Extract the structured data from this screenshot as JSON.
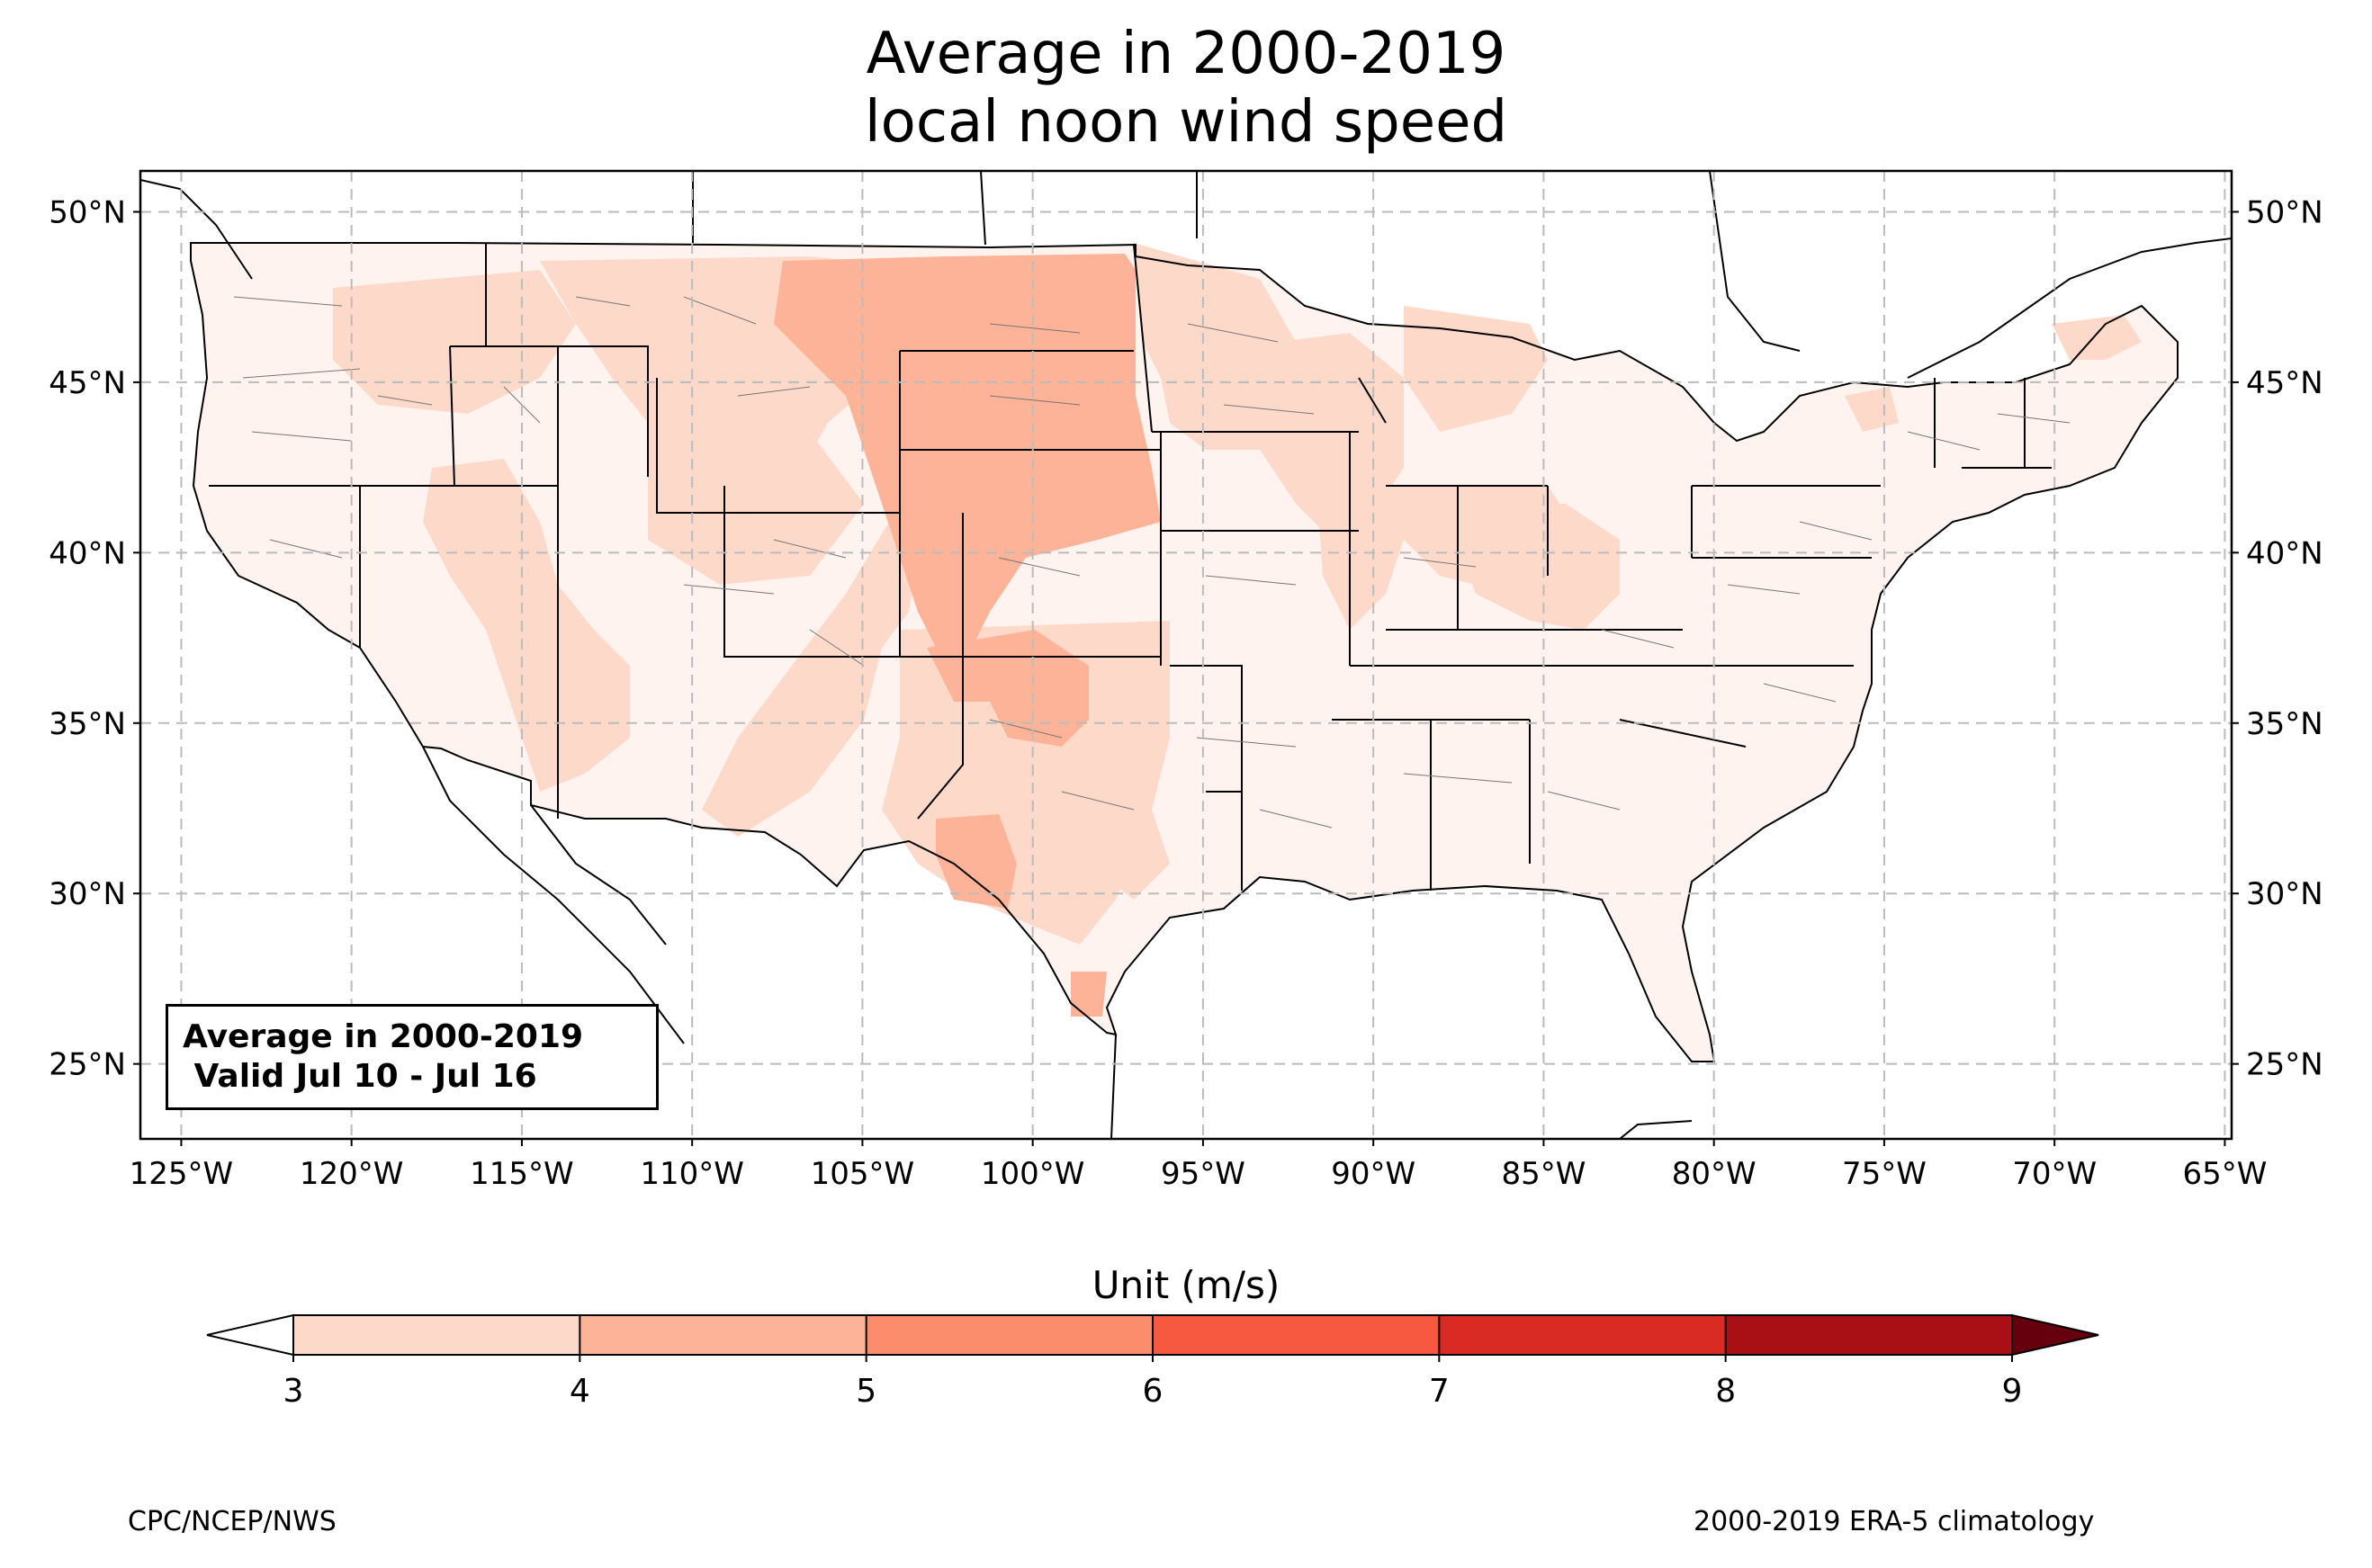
{
  "title": {
    "line1": "Average in 2000-2019",
    "line2": "local noon wind speed"
  },
  "map": {
    "lat_ticks": [
      "50°N",
      "45°N",
      "40°N",
      "35°N",
      "30°N",
      "25°N"
    ],
    "lat_values": [
      50,
      45,
      40,
      35,
      30,
      25
    ],
    "lon_ticks": [
      "125°W",
      "120°W",
      "115°W",
      "110°W",
      "105°W",
      "100°W",
      "95°W",
      "90°W",
      "85°W",
      "80°W",
      "75°W",
      "70°W",
      "65°W"
    ],
    "lon_values": [
      -125,
      -120,
      -115,
      -110,
      -105,
      -100,
      -95,
      -90,
      -85,
      -80,
      -75,
      -70,
      -65
    ],
    "extent": {
      "lon_min": -126.2,
      "lon_max": -64.8,
      "lat_min": 22.8,
      "lat_max": 51.2
    },
    "gridlines": true
  },
  "infobox": {
    "line1": "Average in 2000-2019",
    "line2": " Valid Jul 10 - Jul 16"
  },
  "colorbar": {
    "label": "Unit (m/s)",
    "ticks": [
      "3",
      "4",
      "5",
      "6",
      "7",
      "8",
      "9"
    ],
    "colors": [
      "#fdd9c9",
      "#fcb398",
      "#fc8d6c",
      "#f6593f",
      "#d92a24",
      "#a91016"
    ],
    "under_color": "#ffffff",
    "over_color": "#67000d"
  },
  "colors": {
    "base_fill": "#fff3ef",
    "level1": "#fdd9c9",
    "level2": "#fcb398"
  },
  "footer": {
    "left": "CPC/NCEP/NWS",
    "right": "2000-2019 ERA-5 climatology"
  }
}
